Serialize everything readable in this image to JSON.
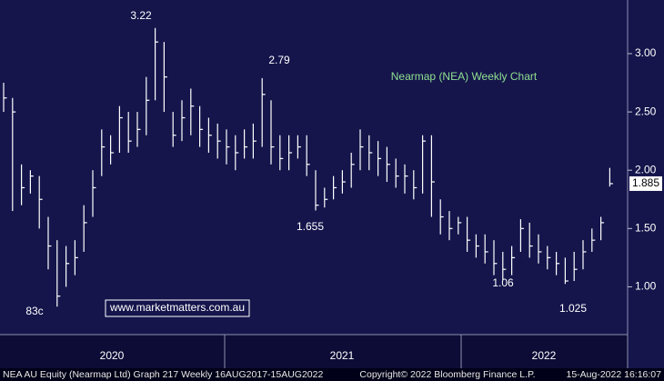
{
  "chart_data": {
    "type": "ohlc",
    "title": "Nearmap (NEA) Weekly Chart",
    "watermark": "www.marketmatters.com.au",
    "color": "#ffffff",
    "title_color": "#8fe08f",
    "ylim": [
      0.59,
      3.46
    ],
    "yticks": [
      {
        "value": 1,
        "label": "1.00"
      },
      {
        "value": 1.5,
        "label": "1.50"
      },
      {
        "value": 2,
        "label": "2.00"
      },
      {
        "value": 2.5,
        "label": "2.50"
      },
      {
        "value": 3,
        "label": "3.00"
      }
    ],
    "year_labels": [
      "2020",
      "2021",
      "2022"
    ],
    "annotations": [
      "3.22",
      "2.79",
      "1.655",
      "83c",
      "1.06",
      "1.025"
    ],
    "close": [
      2.62,
      2.5,
      1.85,
      1.95,
      1.75,
      1.35,
      0.92,
      1.2,
      1.25,
      1.55,
      1.85,
      2.2,
      2.15,
      2.45,
      2.25,
      2.35,
      2.6,
      3.1,
      2.8,
      2.3,
      2.45,
      2.55,
      2.35,
      2.3,
      2.25,
      2.2,
      2.15,
      2.2,
      2.25,
      2.65,
      2.2,
      2.1,
      2.15,
      2.2,
      2.05,
      1.7,
      1.75,
      1.85,
      1.9,
      2.05,
      2.2,
      2.15,
      2.1,
      2.05,
      1.95,
      1.95,
      1.85,
      2.25,
      1.9,
      1.6,
      1.5,
      1.55,
      1.4,
      1.35,
      1.3,
      1.2,
      1.15,
      1.25,
      1.5,
      1.35,
      1.3,
      1.25,
      1.2,
      1.05,
      1.15,
      1.3,
      1.4,
      1.55,
      1.885
    ],
    "high": [
      2.75,
      2.62,
      2.05,
      2.0,
      1.95,
      1.6,
      1.4,
      1.35,
      1.4,
      1.7,
      2.0,
      2.35,
      2.3,
      2.55,
      2.5,
      2.5,
      2.8,
      3.22,
      3.1,
      2.5,
      2.6,
      2.7,
      2.55,
      2.45,
      2.4,
      2.35,
      2.3,
      2.35,
      2.4,
      2.79,
      2.6,
      2.3,
      2.3,
      2.3,
      2.3,
      2.0,
      1.85,
      1.95,
      2.0,
      2.15,
      2.35,
      2.3,
      2.25,
      2.2,
      2.1,
      2.05,
      2.0,
      2.3,
      2.3,
      1.75,
      1.65,
      1.6,
      1.6,
      1.45,
      1.45,
      1.4,
      1.3,
      1.35,
      1.58,
      1.55,
      1.45,
      1.35,
      1.3,
      1.25,
      1.3,
      1.4,
      1.5,
      1.6,
      2.02
    ],
    "low": [
      2.5,
      1.65,
      1.7,
      1.8,
      1.5,
      1.15,
      0.83,
      1.0,
      1.1,
      1.3,
      1.6,
      1.95,
      2.05,
      2.15,
      2.15,
      2.2,
      2.3,
      2.6,
      2.5,
      2.2,
      2.25,
      2.3,
      2.2,
      2.15,
      2.1,
      2.05,
      2.0,
      2.1,
      2.1,
      2.2,
      2.05,
      2.0,
      2.0,
      2.1,
      1.95,
      1.655,
      1.68,
      1.75,
      1.8,
      1.85,
      2.0,
      2.0,
      1.95,
      1.9,
      1.85,
      1.8,
      1.75,
      1.8,
      1.6,
      1.45,
      1.4,
      1.45,
      1.3,
      1.25,
      1.2,
      1.1,
      1.06,
      1.1,
      1.3,
      1.25,
      1.2,
      1.15,
      1.1,
      1.025,
      1.05,
      1.15,
      1.3,
      1.4,
      1.86
    ],
    "footer": [
      "NEA AU Equity (Nearmap Ltd) Graph 217  Weekly 16AUG2017-15AUG2022",
      "Copyright© 2022 Bloomberg Finance L.P.",
      "15-Aug-2022 16:16:07"
    ]
  }
}
